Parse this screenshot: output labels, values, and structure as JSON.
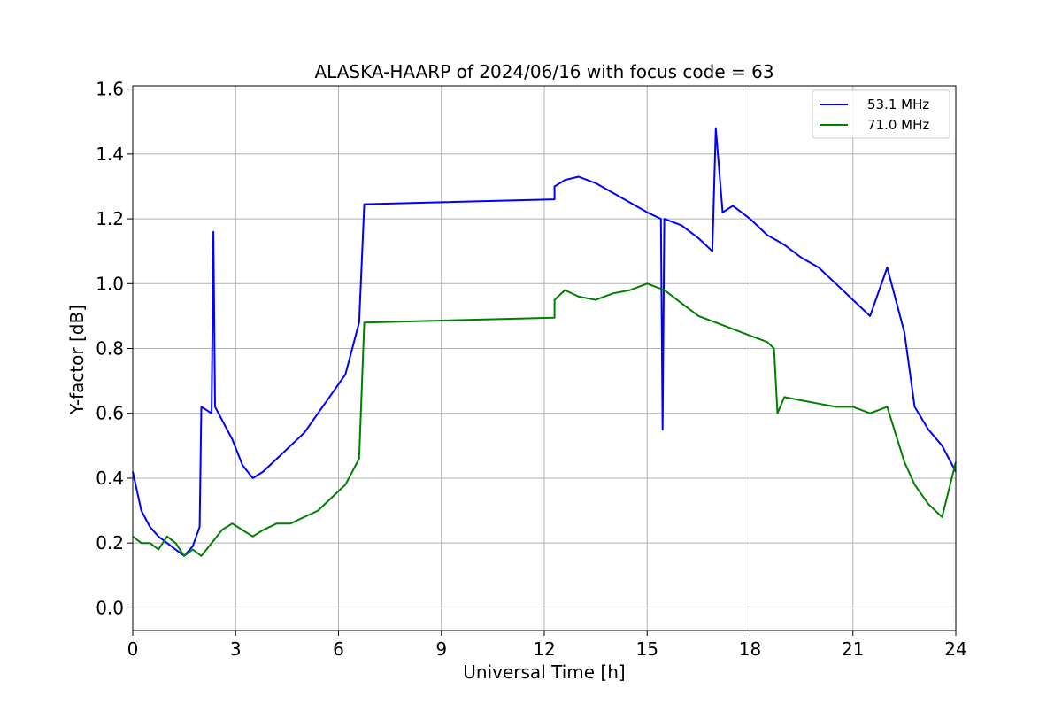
{
  "chart_data": {
    "type": "line",
    "title": "ALASKA-HAARP of 2024/06/16 with focus code = 63",
    "xlabel": "Universal Time [h]",
    "ylabel": "Y-factor [dB]",
    "xlim": [
      0,
      24
    ],
    "ylim": [
      -0.07,
      1.61
    ],
    "xticks": [
      0,
      3,
      6,
      9,
      12,
      15,
      18,
      21,
      24
    ],
    "yticks": [
      0.0,
      0.2,
      0.4,
      0.6,
      0.8,
      1.0,
      1.2,
      1.4,
      1.6
    ],
    "xtick_labels": [
      "0",
      "3",
      "6",
      "9",
      "12",
      "15",
      "18",
      "21",
      "24"
    ],
    "ytick_labels": [
      "0.0",
      "0.2",
      "0.4",
      "0.6",
      "0.8",
      "1.0",
      "1.2",
      "1.4",
      "1.6"
    ],
    "grid": true,
    "legend_position": "top-right",
    "series": [
      {
        "name": "53.1 MHz",
        "color": "#0000ff",
        "x": [
          0.0,
          0.25,
          0.5,
          0.75,
          1.0,
          1.25,
          1.5,
          1.75,
          1.95,
          2.0,
          2.3,
          2.35,
          2.4,
          2.6,
          2.9,
          3.2,
          3.5,
          3.8,
          4.2,
          4.6,
          5.0,
          5.4,
          5.8,
          6.2,
          6.6,
          6.75,
          12.3,
          12.3,
          12.6,
          13.0,
          13.5,
          14.0,
          14.5,
          15.0,
          15.4,
          15.45,
          15.5,
          16.0,
          16.5,
          16.9,
          17.0,
          17.2,
          17.5,
          18.0,
          18.5,
          19.0,
          19.5,
          20.0,
          20.5,
          21.0,
          21.5,
          22.0,
          22.5,
          22.8,
          23.2,
          23.6,
          24.0
        ],
        "y": [
          0.42,
          0.3,
          0.25,
          0.22,
          0.2,
          0.18,
          0.16,
          0.19,
          0.25,
          0.62,
          0.6,
          1.16,
          0.62,
          0.58,
          0.52,
          0.44,
          0.4,
          0.42,
          0.46,
          0.5,
          0.54,
          0.6,
          0.66,
          0.72,
          0.88,
          1.245,
          1.26,
          1.3,
          1.32,
          1.33,
          1.31,
          1.28,
          1.25,
          1.22,
          1.2,
          0.55,
          1.2,
          1.18,
          1.14,
          1.1,
          1.48,
          1.22,
          1.24,
          1.2,
          1.15,
          1.12,
          1.08,
          1.05,
          1.0,
          0.95,
          0.9,
          1.05,
          0.85,
          0.62,
          0.55,
          0.5,
          0.42
        ]
      },
      {
        "name": "71.0 MHz",
        "color": "#008000",
        "x": [
          0.0,
          0.25,
          0.5,
          0.75,
          1.0,
          1.25,
          1.5,
          1.75,
          2.0,
          2.3,
          2.6,
          2.9,
          3.2,
          3.5,
          3.8,
          4.2,
          4.6,
          5.0,
          5.4,
          5.8,
          6.2,
          6.6,
          6.75,
          12.3,
          12.3,
          12.6,
          13.0,
          13.5,
          14.0,
          14.5,
          15.0,
          15.5,
          16.0,
          16.5,
          17.0,
          17.5,
          18.0,
          18.5,
          18.7,
          18.8,
          19.0,
          19.5,
          20.0,
          20.5,
          21.0,
          21.5,
          22.0,
          22.5,
          22.8,
          23.2,
          23.6,
          24.0
        ],
        "y": [
          0.22,
          0.2,
          0.2,
          0.18,
          0.22,
          0.2,
          0.16,
          0.18,
          0.16,
          0.2,
          0.24,
          0.26,
          0.24,
          0.22,
          0.24,
          0.26,
          0.26,
          0.28,
          0.3,
          0.34,
          0.38,
          0.46,
          0.88,
          0.895,
          0.95,
          0.98,
          0.96,
          0.95,
          0.97,
          0.98,
          1.0,
          0.98,
          0.94,
          0.9,
          0.88,
          0.86,
          0.84,
          0.82,
          0.8,
          0.6,
          0.65,
          0.64,
          0.63,
          0.62,
          0.62,
          0.6,
          0.62,
          0.45,
          0.38,
          0.32,
          0.28,
          0.45
        ]
      }
    ]
  }
}
